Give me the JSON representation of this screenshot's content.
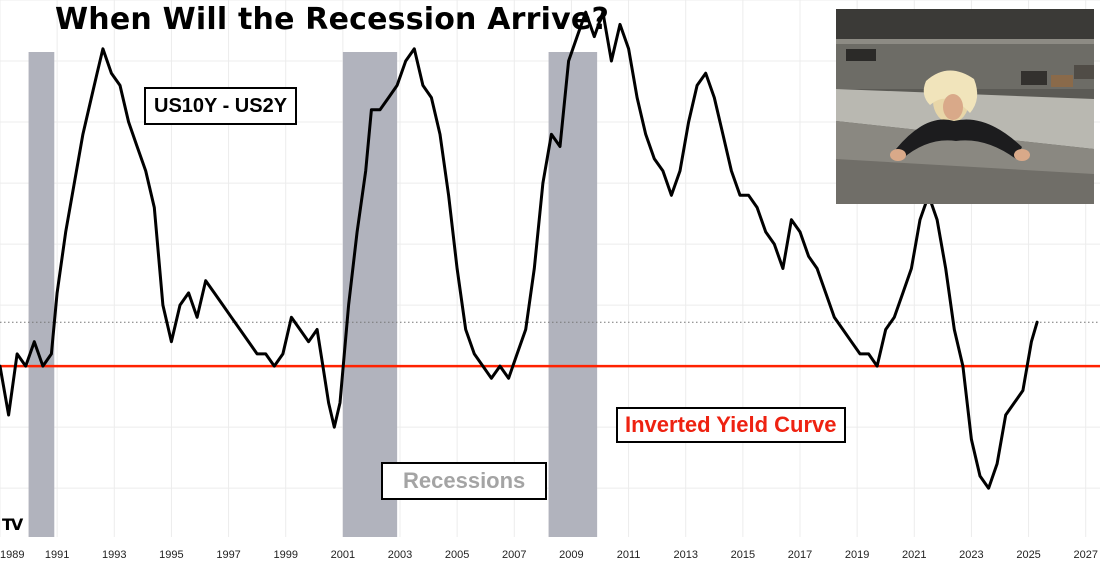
{
  "title": "When Will the Recession Arrive?",
  "labels": {
    "series": "US10Y - US2Y",
    "inverted": "Inverted Yield Curve",
    "recessions": "Recessions"
  },
  "colors": {
    "line": "#000000",
    "inversion": "#ff2200",
    "recession": "#b1b3bd",
    "grid": "#ececec",
    "inverted_text": "#ee2211",
    "recession_text": "#a4a4a4"
  },
  "photo_icon": "woman-on-ledge-photo",
  "chart_data": {
    "type": "line",
    "title": "When Will the Recession Arrive?",
    "xlim": [
      1989,
      2027.5
    ],
    "ylim": [
      -1.4,
      3.0
    ],
    "x_ticks": [
      "1989",
      "1991",
      "1993",
      "1995",
      "1997",
      "1999",
      "2001",
      "2003",
      "2005",
      "2007",
      "2009",
      "2011",
      "2013",
      "2015",
      "2017",
      "2019",
      "2021",
      "2023",
      "2025",
      "2027"
    ],
    "reference_lines": [
      {
        "name": "Inverted Yield Curve",
        "y": 0
      },
      {
        "name": "last value",
        "y": 0.36,
        "style": "dotted"
      }
    ],
    "recessions": [
      [
        1990.0,
        1990.9
      ],
      [
        2001.0,
        2002.9
      ],
      [
        2008.2,
        2009.9
      ]
    ],
    "series": [
      {
        "name": "US10Y - US2Y",
        "x": [
          1989.0,
          1989.3,
          1989.6,
          1989.9,
          1990.2,
          1990.5,
          1990.8,
          1991.0,
          1991.3,
          1991.6,
          1991.9,
          1992.2,
          1992.4,
          1992.6,
          1992.9,
          1993.2,
          1993.5,
          1993.8,
          1994.1,
          1994.4,
          1994.7,
          1995.0,
          1995.3,
          1995.6,
          1995.9,
          1996.2,
          1996.5,
          1996.8,
          1997.1,
          1997.4,
          1997.7,
          1998.0,
          1998.3,
          1998.6,
          1998.9,
          1999.2,
          1999.5,
          1999.8,
          2000.1,
          2000.3,
          2000.5,
          2000.7,
          2000.9,
          2001.2,
          2001.5,
          2001.8,
          2002.0,
          2002.3,
          2002.6,
          2002.9,
          2003.2,
          2003.5,
          2003.8,
          2004.1,
          2004.4,
          2004.7,
          2005.0,
          2005.3,
          2005.6,
          2005.9,
          2006.2,
          2006.5,
          2006.8,
          2007.1,
          2007.4,
          2007.7,
          2008.0,
          2008.3,
          2008.6,
          2008.9,
          2009.2,
          2009.5,
          2009.8,
          2010.1,
          2010.4,
          2010.7,
          2011.0,
          2011.3,
          2011.6,
          2011.9,
          2012.2,
          2012.5,
          2012.8,
          2013.1,
          2013.4,
          2013.7,
          2014.0,
          2014.3,
          2014.6,
          2014.9,
          2015.2,
          2015.5,
          2015.8,
          2016.1,
          2016.4,
          2016.7,
          2017.0,
          2017.3,
          2017.6,
          2017.9,
          2018.2,
          2018.5,
          2018.8,
          2019.1,
          2019.4,
          2019.7,
          2020.0,
          2020.3,
          2020.6,
          2020.9,
          2021.2,
          2021.5,
          2021.8,
          2022.1,
          2022.4,
          2022.7,
          2023.0,
          2023.3,
          2023.6,
          2023.9,
          2024.2,
          2024.5,
          2024.8,
          2025.1,
          2025.3
        ],
        "y": [
          0.0,
          -0.4,
          0.1,
          0.0,
          0.2,
          0.0,
          0.1,
          0.6,
          1.1,
          1.5,
          1.9,
          2.2,
          2.4,
          2.6,
          2.4,
          2.3,
          2.0,
          1.8,
          1.6,
          1.3,
          0.5,
          0.2,
          0.5,
          0.6,
          0.4,
          0.7,
          0.6,
          0.5,
          0.4,
          0.3,
          0.2,
          0.1,
          0.1,
          0.0,
          0.1,
          0.4,
          0.3,
          0.2,
          0.3,
          0.0,
          -0.3,
          -0.5,
          -0.3,
          0.5,
          1.1,
          1.6,
          2.1,
          2.1,
          2.2,
          2.3,
          2.5,
          2.6,
          2.3,
          2.2,
          1.9,
          1.4,
          0.8,
          0.3,
          0.1,
          0.0,
          -0.1,
          0.0,
          -0.1,
          0.1,
          0.3,
          0.8,
          1.5,
          1.9,
          1.8,
          2.5,
          2.7,
          2.9,
          2.7,
          2.9,
          2.5,
          2.8,
          2.6,
          2.2,
          1.9,
          1.7,
          1.6,
          1.4,
          1.6,
          2.0,
          2.3,
          2.4,
          2.2,
          1.9,
          1.6,
          1.4,
          1.4,
          1.3,
          1.1,
          1.0,
          0.8,
          1.2,
          1.1,
          0.9,
          0.8,
          0.6,
          0.4,
          0.3,
          0.2,
          0.1,
          0.1,
          0.0,
          0.3,
          0.4,
          0.6,
          0.8,
          1.2,
          1.4,
          1.2,
          0.8,
          0.3,
          0.0,
          -0.6,
          -0.9,
          -1.0,
          -0.8,
          -0.4,
          -0.3,
          -0.2,
          0.2,
          0.36
        ]
      }
    ]
  }
}
